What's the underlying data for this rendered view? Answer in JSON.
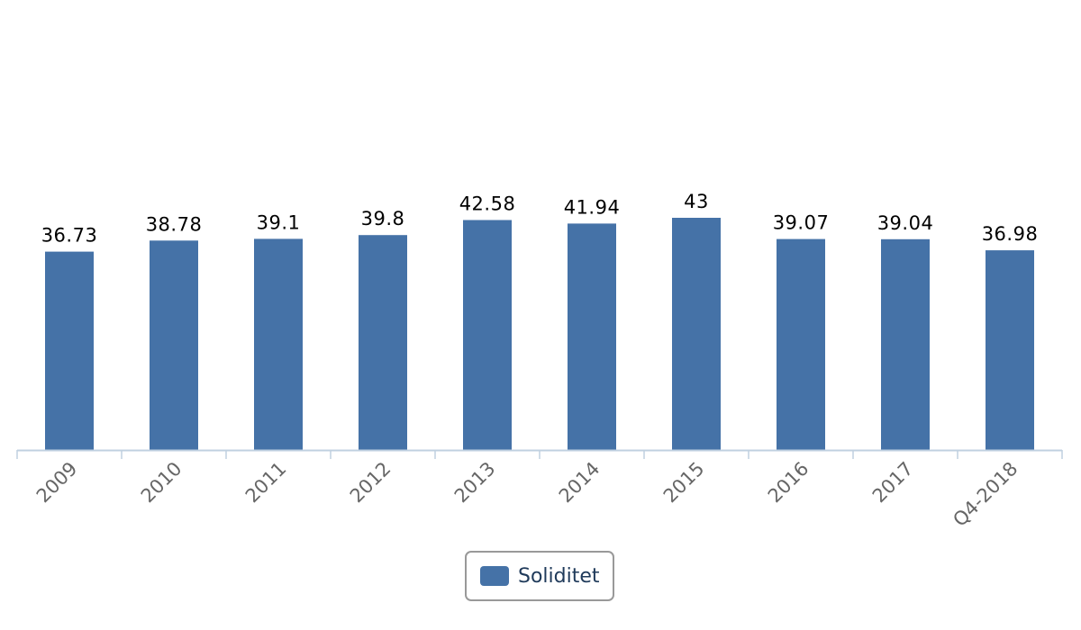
{
  "chart_data": {
    "type": "bar",
    "categories": [
      "2009",
      "2010",
      "2011",
      "2012",
      "2013",
      "2014",
      "2015",
      "2016",
      "2017",
      "Q4-2018"
    ],
    "series": [
      {
        "name": "Soliditet",
        "values": [
          36.73,
          38.78,
          39.1,
          39.8,
          42.58,
          41.94,
          43,
          39.07,
          39.04,
          36.98
        ],
        "color": "#4572a7"
      }
    ],
    "data_labels": [
      "36.73",
      "38.78",
      "39.1",
      "39.8",
      "42.58",
      "41.94",
      "43",
      "39.07",
      "39.04",
      "36.98"
    ],
    "ylim": [
      0,
      70
    ],
    "grid": false,
    "legend_position": "bottom-center",
    "axis_color": "#c0d0e0"
  },
  "legend": {
    "label": "Soliditet"
  }
}
